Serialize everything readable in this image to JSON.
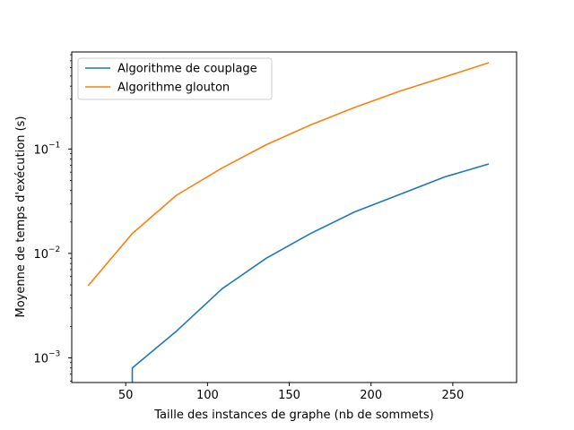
{
  "chart_data": {
    "type": "line",
    "title": "",
    "xlabel": "Taille des instances de graphe (nb de sommets)",
    "ylabel": "Moyenne de temps d'exécution (s)",
    "xlim": [
      17,
      289
    ],
    "ylim": [
      0.00058,
      0.85
    ],
    "yscale": "log",
    "grid": false,
    "legend_position": "top-left",
    "x_ticks": [
      50,
      100,
      150,
      200,
      250
    ],
    "x_tick_labels": [
      "50",
      "100",
      "150",
      "200",
      "250"
    ],
    "y_ticks": [
      0.001,
      0.01,
      0.1
    ],
    "y_tick_labels": [
      "10",
      "10",
      "10"
    ],
    "y_tick_exponents": [
      "−3",
      "−2",
      "−1"
    ],
    "series": [
      {
        "name": "Algorithme de couplage",
        "color": "#1f77b4",
        "x": [
          54,
          54,
          81,
          109,
          136,
          163,
          190,
          218,
          245,
          272
        ],
        "y": [
          0.00058,
          0.0008,
          0.0018,
          0.0046,
          0.009,
          0.0155,
          0.025,
          0.037,
          0.054,
          0.072
        ]
      },
      {
        "name": "Algorithme glouton",
        "color": "#ff7f0e",
        "x": [
          27,
          54,
          81,
          109,
          136,
          163,
          190,
          218,
          245,
          272
        ],
        "y": [
          0.0049,
          0.0155,
          0.036,
          0.066,
          0.11,
          0.17,
          0.25,
          0.36,
          0.49,
          0.67
        ]
      }
    ]
  }
}
